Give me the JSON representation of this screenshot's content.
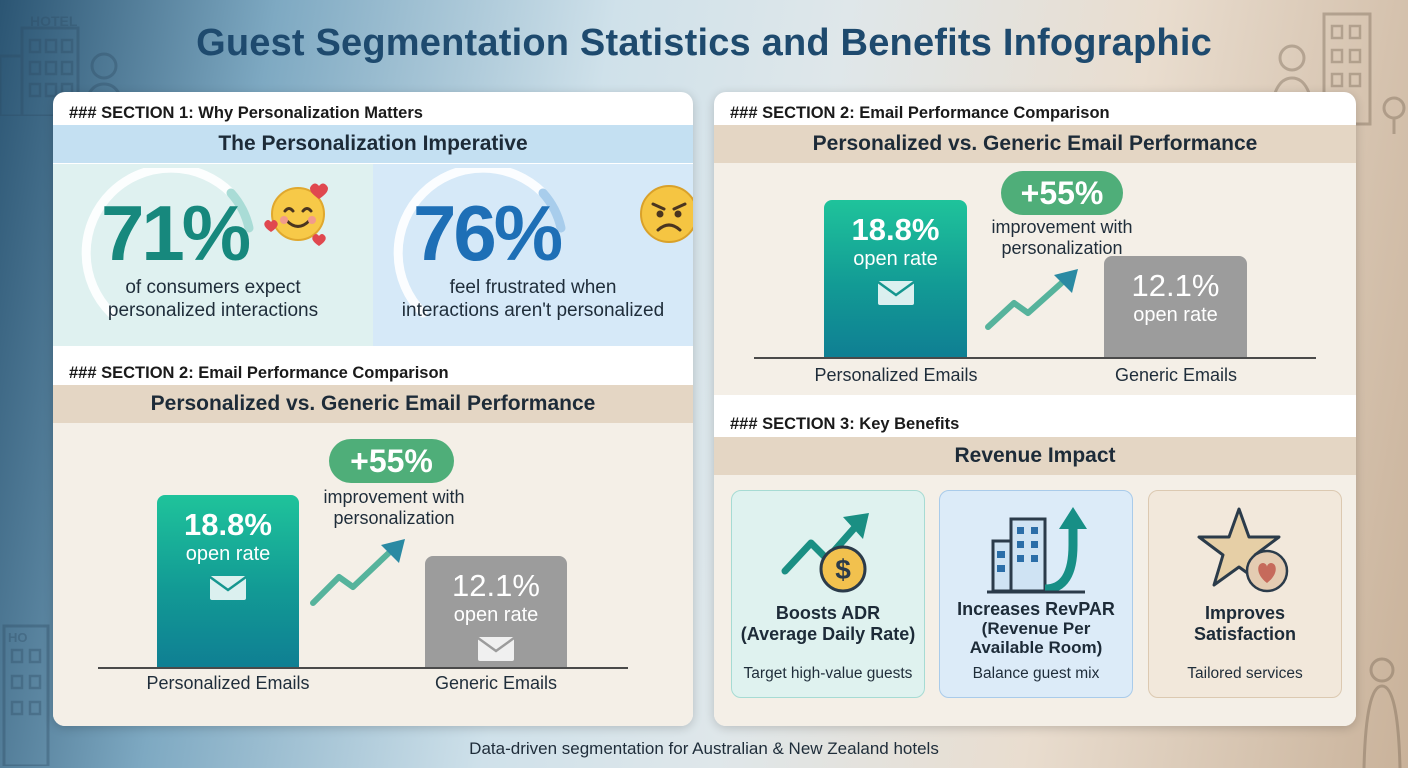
{
  "title": "Guest Segmentation Statistics and Benefits Infographic",
  "decor": {
    "hotel_sign_top": "HOTEL",
    "hotel_sign_bottom": "HO"
  },
  "left_panel": {
    "section1_label": "### SECTION 1: Why Personalization Matters",
    "section1_heading": "The Personalization Imperative",
    "stat1": {
      "value": "71%",
      "text_line1": "of consumers expect",
      "text_line2": "personalized interactions",
      "icon": "smiling-face-hearts-icon"
    },
    "stat2": {
      "value": "76%",
      "text_line1": "feel frustrated when",
      "text_line2": "interactions aren't personalized",
      "icon": "frustrated-face-icon"
    },
    "section2_label": "### SECTION 2: Email Performance Comparison",
    "section2_heading": "Personalized vs. Generic Email Performance"
  },
  "right_panel": {
    "section2_label": "### SECTION 2: Email Performance Comparison",
    "section2_heading": "Personalized vs. Generic Email Performance",
    "section3_label": "### SECTION 3: Key Benefits",
    "section3_heading": "Revenue Impact",
    "benefits": [
      {
        "title_line1": "Boosts ADR",
        "title_line2": "(Average Daily Rate)",
        "title_line3": "",
        "subtitle": "Target high-value guests",
        "icon": "dollar-growth-icon"
      },
      {
        "title_line1": "Increases RevPAR",
        "title_line2": "(Revenue Per",
        "title_line3": "Available Room)",
        "subtitle": "Balance guest mix",
        "icon": "building-arrow-up-icon"
      },
      {
        "title_line1": "Improves",
        "title_line2": "Satisfaction",
        "title_line3": "",
        "subtitle": "Tailored services",
        "icon": "star-heart-icon"
      }
    ]
  },
  "chart_data": {
    "type": "bar",
    "title": "Personalized vs. Generic Email Performance",
    "categories": [
      "Personalized Emails",
      "Generic Emails"
    ],
    "values": [
      18.8,
      12.1
    ],
    "value_labels": [
      "18.8%",
      "12.1%"
    ],
    "bar_sublabel": "open rate",
    "annotation": {
      "value": "+55%",
      "text_line1": "improvement with",
      "text_line2": "personalization"
    },
    "colors": {
      "personalized": "#16a89a",
      "generic": "#9c9c9c",
      "pill": "#4fae79"
    }
  },
  "footer": "Data-driven segmentation for Australian & New Zealand hotels"
}
